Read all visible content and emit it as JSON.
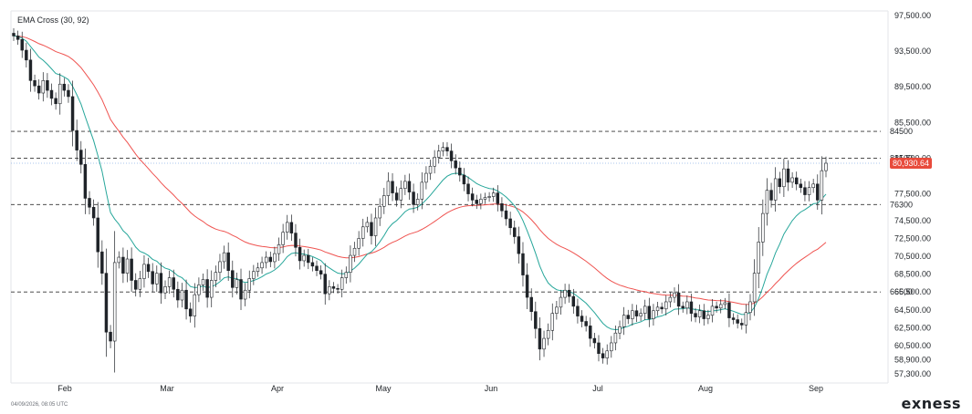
{
  "header": {
    "indicator_label": "EMA Cross (30, 92)"
  },
  "footer": {
    "timestamp": "04/09/2026, 08:05 UTC",
    "brand": "exness"
  },
  "colors": {
    "ema_fast": "#26a69a",
    "ema_slow": "#ef5350",
    "badge": "#e84b3c",
    "candle_up": "#ffffff",
    "candle_down": "#1f2328",
    "level_line": "#333333"
  },
  "chart_data": {
    "type": "candlestick",
    "title": "EMA Cross (30, 92)",
    "x_axis": {
      "ticks": [
        "Feb",
        "Mar",
        "Apr",
        "May",
        "Jun",
        "Jul",
        "Aug",
        "Sep"
      ]
    },
    "y_axis": {
      "position": "right",
      "ylim": [
        56300,
        98000
      ],
      "ticks": [
        {
          "value": 97500,
          "label": "97,500.00"
        },
        {
          "value": 93500,
          "label": "93,500.00"
        },
        {
          "value": 89500,
          "label": "89,500.00"
        },
        {
          "value": 85500,
          "label": "85,500.00"
        },
        {
          "value": 81500,
          "label": "81,500.00"
        },
        {
          "value": 77500,
          "label": "77,500.00"
        },
        {
          "value": 74500,
          "label": "74,500.00"
        },
        {
          "value": 72500,
          "label": "72,500.00"
        },
        {
          "value": 70500,
          "label": "70,500.00"
        },
        {
          "value": 68500,
          "label": "68,500.00"
        },
        {
          "value": 66500,
          "label": "66,500.00"
        },
        {
          "value": 64500,
          "label": "64,500.00"
        },
        {
          "value": 62500,
          "label": "62,500.00"
        },
        {
          "value": 60500,
          "label": "60,500.00"
        },
        {
          "value": 58900,
          "label": "58,900.00"
        },
        {
          "value": 57300,
          "label": "57,300.00"
        }
      ]
    },
    "levels": [
      {
        "value": 84500,
        "label": "84500"
      },
      {
        "value": 81500,
        "label": "81500"
      },
      {
        "value": 76300,
        "label": "76300"
      },
      {
        "value": 66500,
        "label": "66500"
      }
    ],
    "last_price": {
      "value": 80930.64,
      "label": "80,930.64"
    },
    "candles_close": [
      95200,
      94800,
      93600,
      92500,
      90200,
      89600,
      88800,
      90200,
      89100,
      88200,
      87600,
      89800,
      89100,
      88400,
      84600,
      82400,
      80800,
      77000,
      76000,
      74800,
      71000,
      68600,
      62000,
      61000,
      69800,
      70400,
      68600,
      70200,
      67800,
      66800,
      68000,
      69600,
      68800,
      67400,
      68600,
      66400,
      67100,
      68100,
      66800,
      65600,
      66700,
      64600,
      63800,
      66200,
      67300,
      67900,
      65900,
      67800,
      68700,
      69900,
      70900,
      68900,
      67000,
      67900,
      65700,
      66700,
      68000,
      68800,
      69200,
      69800,
      70400,
      69900,
      70800,
      71800,
      73200,
      74300,
      73100,
      71500,
      70000,
      70600,
      69800,
      69400,
      68900,
      68500,
      66300,
      67100,
      66900,
      66800,
      68100,
      68700,
      70600,
      71400,
      72500,
      73800,
      74300,
      72800,
      74800,
      76100,
      77300,
      78900,
      77600,
      76800,
      78100,
      78900,
      77700,
      76300,
      76900,
      78800,
      79800,
      80600,
      81600,
      82300,
      82700,
      82300,
      81200,
      80400,
      79600,
      78600,
      77500,
      76800,
      76400,
      76900,
      77100,
      77200,
      77600,
      76400,
      75600,
      74700,
      73700,
      72700,
      70800,
      68400,
      65900,
      64300,
      62400,
      60100,
      61300,
      62200,
      64100,
      64800,
      65900,
      66700,
      66000,
      64900,
      63800,
      63200,
      62700,
      61300,
      60800,
      59600,
      59100,
      59900,
      60800,
      61900,
      62600,
      63900,
      63500,
      64400,
      63800,
      64100,
      64900,
      63500,
      64400,
      64800,
      64600,
      65400,
      65900,
      66400,
      64900,
      64700,
      65400,
      64100,
      63700,
      64400,
      63500,
      63900,
      64900,
      64700,
      65100,
      65300,
      63600,
      63400,
      63000,
      62800,
      64200,
      65400,
      68600,
      72100,
      75300,
      77900,
      76800,
      79200,
      78300,
      80300,
      78800,
      79300,
      78600,
      78200,
      77400,
      78200,
      78600,
      76800,
      80100,
      80930
    ]
  }
}
